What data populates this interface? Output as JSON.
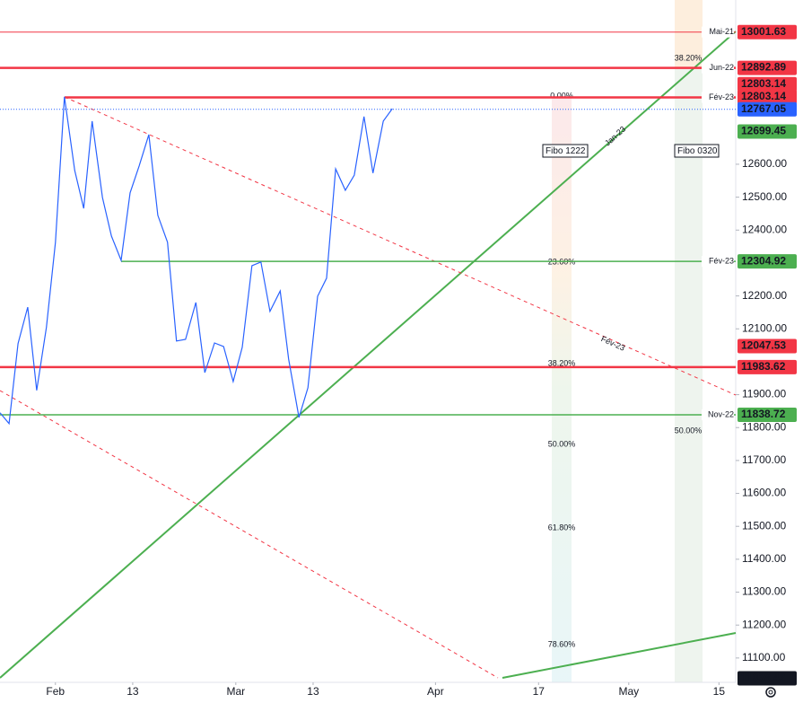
{
  "chart_data": {
    "type": "line",
    "x": [
      23.4,
      24.8,
      26.2,
      27.7,
      29.1,
      30.6,
      32.0,
      33.4,
      35.0,
      36.4,
      37.7,
      39.3,
      40.7,
      42.2,
      43.6,
      45.0,
      46.5,
      47.9,
      49.4,
      50.8,
      52.2,
      53.8,
      55.2,
      56.7,
      58.1,
      59.6,
      61.0,
      62.5,
      63.9,
      65.3,
      66.9,
      68.2,
      69.8,
      71.2,
      72.7,
      74.1,
      75.5,
      77.0,
      78.4,
      79.9,
      81.3,
      82.9,
      84.3
    ],
    "series": [
      {
        "color": "#2962ff",
        "values": [
          11845,
          11812,
          12055,
          12166,
          11913,
          12104,
          12363,
          12805,
          12581,
          12466,
          12731,
          12499,
          12382,
          12308,
          12513,
          12595,
          12690,
          12445,
          12363,
          12063,
          12068,
          12180,
          11967,
          12057,
          12046,
          11940,
          12044,
          12292,
          12303,
          12153,
          12215,
          12008,
          11831,
          11921,
          12199,
          12254,
          12586,
          12521,
          12567,
          12745,
          12573,
          12731,
          12769
        ]
      }
    ],
    "xlim": [
      23.4,
      137.6
    ],
    "xticks": [
      {
        "value": 32,
        "label": "Feb"
      },
      {
        "value": 44,
        "label": "13"
      },
      {
        "value": 60,
        "label": "Mar"
      },
      {
        "value": 72,
        "label": "13"
      },
      {
        "value": 91,
        "label": "Apr"
      },
      {
        "value": 107,
        "label": "17"
      },
      {
        "value": 121,
        "label": "May"
      },
      {
        "value": 135,
        "label": "15"
      }
    ],
    "ylim": [
      11026,
      13099
    ],
    "yticks": [
      {
        "value": 12600,
        "label": "12600.00"
      },
      {
        "value": 12500,
        "label": "12500.00"
      },
      {
        "value": 12400,
        "label": "12400.00"
      },
      {
        "value": 12200,
        "label": "12200.00"
      },
      {
        "value": 12100,
        "label": "12100.00"
      },
      {
        "value": 11900,
        "label": "11900.00"
      },
      {
        "value": 11800,
        "label": "11800.00"
      },
      {
        "value": 11700,
        "label": "11700.00"
      },
      {
        "value": 11600,
        "label": "11600.00"
      },
      {
        "value": 11500,
        "label": "11500.00"
      },
      {
        "value": 11400,
        "label": "11400.00"
      },
      {
        "value": 11300,
        "label": "11300.00"
      },
      {
        "value": 11200,
        "label": "11200.00"
      },
      {
        "value": 11100,
        "label": "11100.00"
      }
    ],
    "levels": [
      {
        "value": 13001.63,
        "color": "#f23645",
        "tag": "Mai-21",
        "style": "thin"
      },
      {
        "value": 12892.89,
        "color": "#f23645",
        "tag": "Jun-22",
        "style": "thick"
      },
      {
        "value": 12803.14,
        "color": "#f23645",
        "style": "none"
      },
      {
        "value": 12803.14,
        "color": "#f23645",
        "tag": "Fév-23",
        "style": "thick"
      },
      {
        "value": 12767.05,
        "color": "#2962ff",
        "style": "dotted"
      },
      {
        "value": 12699.45,
        "color": "#4caf50",
        "style": "none"
      },
      {
        "value": 12304.92,
        "color": "#4caf50",
        "tag": "Fév-23",
        "style": "normal"
      },
      {
        "value": 12047.53,
        "color": "#f23645",
        "style": "none"
      },
      {
        "value": 11983.62,
        "color": "#f23645",
        "style": "thick"
      },
      {
        "value": 11838.72,
        "color": "#4caf50",
        "tag": "Nov-22",
        "style": "normal"
      },
      {
        "value": 11038.42,
        "color": "#131722",
        "style": "none"
      }
    ],
    "trendline_labels": [
      "Jan-23",
      "Fév-23"
    ],
    "fibs": [
      {
        "name": "Fibo 1222",
        "levels": [
          "0.00%",
          "23.60%",
          "38.20%",
          "50.00%",
          "61.80%",
          "78.60%"
        ]
      },
      {
        "name": "Fibo 0320",
        "levels": [
          "38.20%",
          "50.00%"
        ]
      }
    ]
  }
}
